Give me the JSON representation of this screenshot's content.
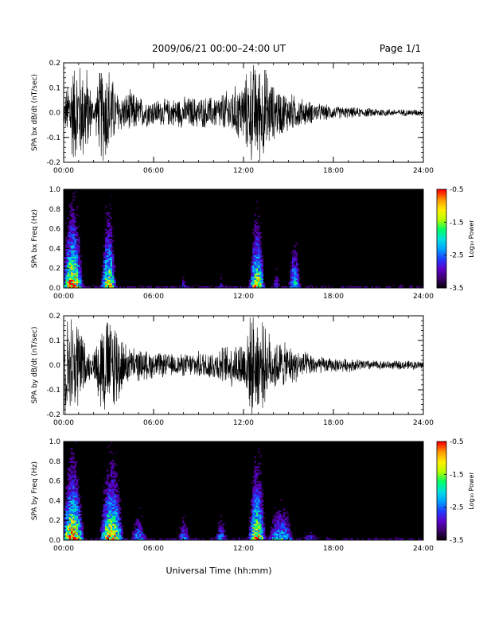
{
  "header": {
    "title": "2009/06/21   00:00–24:00 UT",
    "page": "Page 1/1"
  },
  "footer": {
    "xlabel": "Universal Time (hh:mm)"
  },
  "colorbar": {
    "label": "Log₁₀ Power",
    "ticks": [
      "-0.5",
      "-1.5",
      "-2.5",
      "-3.5"
    ],
    "range": [
      -3.5,
      -0.5
    ],
    "colors": [
      "#000000",
      "#3a0066",
      "#5b00c8",
      "#1f3cff",
      "#00a0ff",
      "#00e0e0",
      "#00ff66",
      "#b8ff00",
      "#ffee00",
      "#ff9900",
      "#ff0000"
    ]
  },
  "chart_data": [
    {
      "type": "line",
      "panel": "bx-waveform",
      "ylabel": "SPA bx dB/dt (nT/sec)",
      "x_ticks": [
        "00:00",
        "06:00",
        "12:00",
        "18:00",
        "24:00"
      ],
      "xlim": [
        0,
        24
      ],
      "ylim": [
        -0.2,
        0.2
      ],
      "y_ticks": [
        "0.2",
        "0.1",
        "0.0",
        "-0.1",
        "-0.2"
      ],
      "series": [
        {
          "x": [
            0.0,
            0.5,
            1.0,
            1.5,
            2.0,
            2.5,
            3.0,
            3.5,
            4.0,
            4.5,
            5.0,
            6.0,
            7.0,
            8.0,
            9.0,
            10.0,
            11.0,
            12.0,
            12.5,
            13.0,
            13.5,
            14.0,
            15.0,
            16.0,
            17.0,
            18.0,
            19.0,
            20.0,
            21.0,
            22.0,
            23.0,
            24.0
          ],
          "amplitude": [
            0.04,
            0.22,
            0.22,
            0.22,
            0.04,
            0.22,
            0.22,
            0.1,
            0.08,
            0.1,
            0.07,
            0.06,
            0.06,
            0.07,
            0.07,
            0.07,
            0.1,
            0.14,
            0.22,
            0.22,
            0.2,
            0.12,
            0.09,
            0.06,
            0.04,
            0.03,
            0.025,
            0.02,
            0.02,
            0.015,
            0.015,
            0.015
          ]
        }
      ]
    },
    {
      "type": "heatmap",
      "panel": "bx-spectrogram",
      "ylabel": "SPA bx Freq (Hz)",
      "x_ticks": [
        "00:00",
        "06:00",
        "12:00",
        "18:00",
        "24:00"
      ],
      "xlim": [
        0,
        24
      ],
      "ylim": [
        0.0,
        1.0
      ],
      "y_ticks": [
        "1.0",
        "0.8",
        "0.6",
        "0.4",
        "0.2",
        "0.0"
      ],
      "bursts": [
        {
          "x_center": 0.6,
          "width": 1.2,
          "reach": 1.0,
          "strength": 1.0
        },
        {
          "x_center": 3.0,
          "width": 0.9,
          "reach": 0.95,
          "strength": 0.85
        },
        {
          "x_center": 8.0,
          "width": 0.4,
          "reach": 0.2,
          "strength": 0.35
        },
        {
          "x_center": 10.5,
          "width": 0.4,
          "reach": 0.2,
          "strength": 0.35
        },
        {
          "x_center": 12.9,
          "width": 0.9,
          "reach": 0.9,
          "strength": 0.85
        },
        {
          "x_center": 15.4,
          "width": 0.7,
          "reach": 0.7,
          "strength": 0.6
        },
        {
          "x_center": 14.2,
          "width": 0.4,
          "reach": 0.3,
          "strength": 0.4
        }
      ]
    },
    {
      "type": "line",
      "panel": "by-waveform",
      "ylabel": "SPA by dB/dt (nT/sec)",
      "x_ticks": [
        "00:00",
        "06:00",
        "12:00",
        "18:00",
        "24:00"
      ],
      "xlim": [
        0,
        24
      ],
      "ylim": [
        -0.2,
        0.2
      ],
      "y_ticks": [
        "0.2",
        "0.1",
        "0.0",
        "-0.1",
        "-0.2"
      ],
      "series": [
        {
          "x": [
            0.0,
            0.5,
            1.0,
            1.5,
            2.0,
            2.5,
            3.0,
            3.5,
            4.0,
            4.5,
            5.0,
            6.0,
            7.0,
            8.0,
            9.0,
            10.0,
            11.0,
            12.0,
            12.5,
            13.0,
            13.5,
            14.0,
            15.0,
            16.0,
            17.0,
            18.0,
            19.0,
            20.0,
            21.0,
            22.0,
            23.0,
            24.0
          ],
          "amplitude": [
            0.22,
            0.22,
            0.22,
            0.08,
            0.05,
            0.22,
            0.22,
            0.22,
            0.1,
            0.08,
            0.07,
            0.06,
            0.05,
            0.05,
            0.06,
            0.07,
            0.09,
            0.12,
            0.22,
            0.22,
            0.16,
            0.12,
            0.09,
            0.06,
            0.04,
            0.03,
            0.03,
            0.025,
            0.02,
            0.02,
            0.02,
            0.02
          ]
        }
      ]
    },
    {
      "type": "heatmap",
      "panel": "by-spectrogram",
      "ylabel": "SPA by Freq (Hz)",
      "x_ticks": [
        "00:00",
        "06:00",
        "12:00",
        "18:00",
        "24:00"
      ],
      "xlim": [
        0,
        24
      ],
      "ylim": [
        0.0,
        1.0
      ],
      "y_ticks": [
        "1.0",
        "0.8",
        "0.6",
        "0.4",
        "0.2",
        "0.0"
      ],
      "bursts": [
        {
          "x_center": 0.6,
          "width": 1.3,
          "reach": 1.0,
          "strength": 1.0
        },
        {
          "x_center": 3.2,
          "width": 1.4,
          "reach": 1.0,
          "strength": 0.9
        },
        {
          "x_center": 5.0,
          "width": 1.0,
          "reach": 0.4,
          "strength": 0.5
        },
        {
          "x_center": 8.0,
          "width": 0.8,
          "reach": 0.35,
          "strength": 0.45
        },
        {
          "x_center": 10.5,
          "width": 0.8,
          "reach": 0.35,
          "strength": 0.45
        },
        {
          "x_center": 12.9,
          "width": 1.0,
          "reach": 1.0,
          "strength": 0.9
        },
        {
          "x_center": 14.5,
          "width": 1.6,
          "reach": 0.5,
          "strength": 0.6
        },
        {
          "x_center": 16.5,
          "width": 1.0,
          "reach": 0.2,
          "strength": 0.35
        }
      ]
    }
  ]
}
